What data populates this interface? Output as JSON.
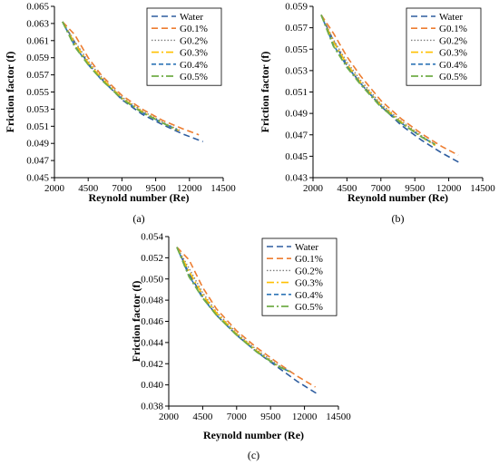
{
  "series_styles": [
    {
      "name": "Water",
      "color": "#2e5d9f",
      "dash": "7,4",
      "width": 1.6
    },
    {
      "name": "G0.1%",
      "color": "#ed7d31",
      "dash": "7,4",
      "width": 1.6
    },
    {
      "name": "G0.2%",
      "color": "#808080",
      "dash": "1.5,2",
      "width": 1.4
    },
    {
      "name": "G0.3%",
      "color": "#ffc000",
      "dash": "8,3,2,3",
      "width": 1.6
    },
    {
      "name": "G0.4%",
      "color": "#2e75b6",
      "dash": "5,3",
      "width": 1.6
    },
    {
      "name": "G0.5%",
      "color": "#70ad47",
      "dash": "8,3,2,3",
      "width": 1.8
    }
  ],
  "chart_data": [
    {
      "type": "line",
      "panel_label": "(a)",
      "xlabel": "Reynold number (Re)",
      "ylabel": "Friction factor (f)",
      "xlim": [
        2000,
        14500
      ],
      "ylim": [
        0.045,
        0.065
      ],
      "xticks": [
        2000,
        4500,
        7000,
        9500,
        12000,
        14500
      ],
      "yticks": [
        0.045,
        0.047,
        0.049,
        0.051,
        0.053,
        0.055,
        0.057,
        0.059,
        0.061,
        0.063,
        0.065
      ],
      "xtick_labels": [
        "2000",
        "4500",
        "7000",
        "9500",
        "12000",
        "14500"
      ],
      "ytick_labels": [
        "0.045",
        "0.047",
        "0.049",
        "0.051",
        "0.053",
        "0.055",
        "0.057",
        "0.059",
        "0.061",
        "0.063",
        "0.065"
      ],
      "legend_position": "top-right",
      "series": [
        {
          "name": "Water",
          "x": [
            2600,
            3500,
            4500,
            5500,
            7000,
            8500,
            10000,
            11500,
            13000
          ],
          "y": [
            0.0632,
            0.0608,
            0.0583,
            0.0565,
            0.0541,
            0.0524,
            0.0512,
            0.0501,
            0.0492
          ]
        },
        {
          "name": "G0.1%",
          "x": [
            2600,
            3500,
            4500,
            5500,
            7000,
            8500,
            10000,
            11500,
            12700
          ],
          "y": [
            0.0632,
            0.0617,
            0.059,
            0.0569,
            0.0546,
            0.053,
            0.0517,
            0.0507,
            0.05
          ]
        },
        {
          "name": "G0.2%",
          "x": [
            2600,
            3500,
            4500,
            5500,
            7000,
            8500,
            10000,
            11300
          ],
          "y": [
            0.0632,
            0.0609,
            0.0586,
            0.0567,
            0.0544,
            0.0528,
            0.0515,
            0.0505
          ]
        },
        {
          "name": "G0.3%",
          "x": [
            2600,
            3500,
            4500,
            5500,
            7000,
            8500,
            10000,
            11200
          ],
          "y": [
            0.0632,
            0.0607,
            0.0584,
            0.0566,
            0.0543,
            0.0527,
            0.0514,
            0.0505
          ]
        },
        {
          "name": "G0.4%",
          "x": [
            2600,
            3500,
            4500,
            5500,
            7000,
            8500,
            10000,
            11100
          ],
          "y": [
            0.0632,
            0.0604,
            0.0582,
            0.0564,
            0.0542,
            0.0526,
            0.0514,
            0.0506
          ]
        },
        {
          "name": "G0.5%",
          "x": [
            2600,
            3500,
            4500,
            5500,
            7000,
            8500,
            10000,
            11000
          ],
          "y": [
            0.0632,
            0.0603,
            0.0582,
            0.0564,
            0.0542,
            0.0526,
            0.0514,
            0.0506
          ]
        }
      ]
    },
    {
      "type": "line",
      "panel_label": "(b)",
      "xlabel": "Reynold number (Re)",
      "ylabel": "Friction factor (f)",
      "xlim": [
        2000,
        14500
      ],
      "ylim": [
        0.043,
        0.059
      ],
      "xticks": [
        2000,
        4500,
        7000,
        9500,
        12000,
        14500
      ],
      "yticks": [
        0.043,
        0.045,
        0.047,
        0.049,
        0.051,
        0.053,
        0.055,
        0.057,
        0.059
      ],
      "xtick_labels": [
        "2000",
        "4500",
        "7000",
        "9500",
        "12000",
        "14500"
      ],
      "ytick_labels": [
        "0.043",
        "0.045",
        "0.047",
        "0.049",
        "0.051",
        "0.053",
        "0.055",
        "0.057",
        "0.059"
      ],
      "legend_position": "top-right",
      "series": [
        {
          "name": "Water",
          "x": [
            2600,
            3500,
            4500,
            5500,
            7000,
            8500,
            10000,
            11500,
            12800
          ],
          "y": [
            0.0582,
            0.0558,
            0.0535,
            0.0518,
            0.0497,
            0.0479,
            0.0465,
            0.0453,
            0.0444
          ]
        },
        {
          "name": "G0.1%",
          "x": [
            2600,
            3500,
            4500,
            5500,
            7000,
            8500,
            10000,
            11500,
            12700
          ],
          "y": [
            0.0582,
            0.0565,
            0.0543,
            0.0525,
            0.0502,
            0.0485,
            0.0471,
            0.0459,
            0.0451
          ]
        },
        {
          "name": "G0.2%",
          "x": [
            2600,
            3500,
            4500,
            5500,
            7000,
            8500,
            10000,
            11000
          ],
          "y": [
            0.0582,
            0.0559,
            0.0538,
            0.0521,
            0.0499,
            0.0483,
            0.0469,
            0.0461
          ]
        },
        {
          "name": "G0.3%",
          "x": [
            2600,
            3500,
            4500,
            5500,
            7000,
            8500,
            10000,
            11000
          ],
          "y": [
            0.0582,
            0.0557,
            0.0536,
            0.0519,
            0.0498,
            0.0482,
            0.0468,
            0.046
          ]
        },
        {
          "name": "G0.4%",
          "x": [
            2600,
            3500,
            4500,
            5500,
            7000,
            8500,
            10000,
            11000
          ],
          "y": [
            0.0582,
            0.0554,
            0.0534,
            0.0518,
            0.0497,
            0.0481,
            0.0468,
            0.0461
          ]
        },
        {
          "name": "G0.5%",
          "x": [
            2600,
            3500,
            4500,
            5500,
            7000,
            8500,
            10000,
            11000
          ],
          "y": [
            0.0582,
            0.0553,
            0.0533,
            0.0517,
            0.0496,
            0.0481,
            0.0468,
            0.0461
          ]
        }
      ]
    },
    {
      "type": "line",
      "panel_label": "(c)",
      "xlabel": "Reynold number (Re)",
      "ylabel": "Friction factor (f)",
      "xlim": [
        2000,
        14500
      ],
      "ylim": [
        0.038,
        0.054
      ],
      "xticks": [
        2000,
        4500,
        7000,
        9500,
        12000,
        14500
      ],
      "yticks": [
        0.038,
        0.04,
        0.042,
        0.044,
        0.046,
        0.048,
        0.05,
        0.052,
        0.054
      ],
      "xtick_labels": [
        "2000",
        "4500",
        "7000",
        "9500",
        "12000",
        "14500"
      ],
      "ytick_labels": [
        "0.038",
        "0.040",
        "0.042",
        "0.044",
        "0.046",
        "0.048",
        "0.050",
        "0.052",
        "0.054"
      ],
      "legend_position": "top-right",
      "series": [
        {
          "name": "Water",
          "x": [
            2600,
            3500,
            4500,
            5500,
            7000,
            8500,
            10000,
            11500,
            13000
          ],
          "y": [
            0.053,
            0.0505,
            0.0483,
            0.0466,
            0.0447,
            0.0431,
            0.0417,
            0.0403,
            0.0391
          ]
        },
        {
          "name": "G0.1%",
          "x": [
            2600,
            3500,
            4500,
            5500,
            7000,
            8500,
            10000,
            11500,
            12800
          ],
          "y": [
            0.053,
            0.0518,
            0.0492,
            0.0472,
            0.0451,
            0.0435,
            0.0421,
            0.0408,
            0.0398
          ]
        },
        {
          "name": "G0.2%",
          "x": [
            2600,
            3500,
            4500,
            5500,
            7000,
            8500,
            10000,
            11000
          ],
          "y": [
            0.053,
            0.051,
            0.0487,
            0.0469,
            0.0449,
            0.0433,
            0.0419,
            0.0412
          ]
        },
        {
          "name": "G0.3%",
          "x": [
            2600,
            3500,
            4500,
            5500,
            7000,
            8500,
            10000,
            11000
          ],
          "y": [
            0.053,
            0.0507,
            0.0485,
            0.0468,
            0.0448,
            0.0432,
            0.0418,
            0.0412
          ]
        },
        {
          "name": "G0.4%",
          "x": [
            2600,
            3500,
            4500,
            5500,
            7000,
            8500,
            10000,
            11000
          ],
          "y": [
            0.053,
            0.0503,
            0.0482,
            0.0466,
            0.0447,
            0.0431,
            0.0418,
            0.0412
          ]
        },
        {
          "name": "G0.5%",
          "x": [
            2600,
            3500,
            4500,
            5500,
            7000,
            8500,
            10000,
            11000
          ],
          "y": [
            0.053,
            0.0502,
            0.0482,
            0.0466,
            0.0447,
            0.0431,
            0.0418,
            0.0412
          ]
        }
      ]
    }
  ]
}
